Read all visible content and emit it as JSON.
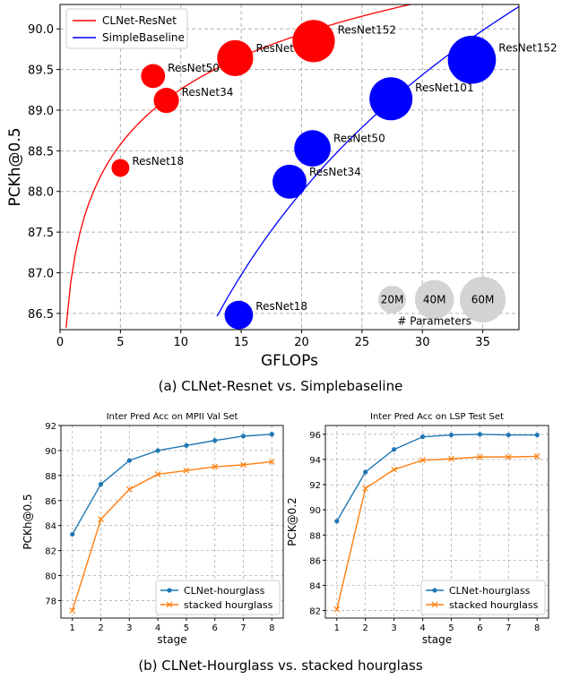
{
  "chart_data": [
    {
      "type": "scatter",
      "title": "",
      "caption": "(a) CLNet-Resnet vs. Simplebaseline",
      "xlabel": "GFLOPs",
      "ylabel": "PCKh@0.5",
      "xlim": [
        0,
        38
      ],
      "ylim": [
        86.3,
        90.3
      ],
      "xticks": [
        0,
        5,
        10,
        15,
        20,
        25,
        30,
        35
      ],
      "yticks": [
        86.5,
        87.0,
        87.5,
        88.0,
        88.5,
        89.0,
        89.5,
        90.0
      ],
      "ytick_labels": [
        "86.5",
        "87.0",
        "87.5",
        "88.0",
        "88.5",
        "89.0",
        "89.5",
        "90.0"
      ],
      "grid": true,
      "legend_position": "top-left",
      "series": [
        {
          "name": "CLNet-ResNet",
          "color": "#ff0000",
          "points": [
            {
              "label": "ResNet18",
              "x": 5.0,
              "y": 88.29,
              "params_m": 11
            },
            {
              "label": "ResNet34",
              "x": 8.8,
              "y": 89.12,
              "params_m": 22
            },
            {
              "label": "ResNet50",
              "x": 7.7,
              "y": 89.42,
              "params_m": 20
            },
            {
              "label": "ResNet101",
              "x": 14.5,
              "y": 89.64,
              "params_m": 45
            },
            {
              "label": "ResNet152",
              "x": 21.0,
              "y": 89.85,
              "params_m": 62
            }
          ],
          "trend": {
            "x_start": 0.5,
            "x_end": 31
          }
        },
        {
          "name": "SimpleBaseline",
          "color": "#0000ff",
          "points": [
            {
              "label": "ResNet18",
              "x": 14.8,
              "y": 86.48,
              "params_m": 28
            },
            {
              "label": "ResNet34",
              "x": 19.0,
              "y": 88.12,
              "params_m": 40
            },
            {
              "label": "ResNet50",
              "x": 20.9,
              "y": 88.53,
              "params_m": 46
            },
            {
              "label": "ResNet101",
              "x": 27.4,
              "y": 89.14,
              "params_m": 64
            },
            {
              "label": "ResNet152",
              "x": 34.1,
              "y": 89.62,
              "params_m": 80
            }
          ],
          "trend": {
            "x_start": 13,
            "x_end": 38
          }
        }
      ],
      "size_legend": {
        "title": "# Parameters",
        "entries": [
          {
            "label": "20M",
            "x": 27.5,
            "params_m": 20
          },
          {
            "label": "40M",
            "x": 31.0,
            "params_m": 40
          },
          {
            "label": "60M",
            "x": 35.0,
            "params_m": 60
          }
        ],
        "y": 86.67
      }
    },
    {
      "type": "line",
      "title": "Inter Pred Acc on MPII Val Set",
      "xlabel": "stage",
      "ylabel": "PCKh@0.5",
      "xlim": [
        0.6,
        8.4
      ],
      "ylim": [
        76.6,
        92.0
      ],
      "x": [
        1,
        2,
        3,
        4,
        5,
        6,
        7,
        8
      ],
      "yticks": [
        78,
        80,
        82,
        84,
        86,
        88,
        90,
        92
      ],
      "grid": true,
      "legend_position": "bottom-right",
      "series": [
        {
          "name": "CLNet-hourglass",
          "color": "#1f77b4",
          "marker": "dot",
          "values": [
            83.3,
            87.3,
            89.2,
            90.0,
            90.4,
            90.8,
            91.15,
            91.3
          ]
        },
        {
          "name": "stacked hourglass",
          "color": "#ff7f0e",
          "marker": "x",
          "values": [
            77.2,
            84.5,
            86.9,
            88.1,
            88.4,
            88.7,
            88.85,
            89.1
          ]
        }
      ]
    },
    {
      "type": "line",
      "title": "Inter Pred Acc on LSP Test Set",
      "xlabel": "stage",
      "ylabel": "PCK@0.2",
      "xlim": [
        0.6,
        8.4
      ],
      "ylim": [
        81.4,
        96.7
      ],
      "x": [
        1,
        2,
        3,
        4,
        5,
        6,
        7,
        8
      ],
      "yticks": [
        82,
        84,
        86,
        88,
        90,
        92,
        94,
        96
      ],
      "grid": true,
      "legend_position": "bottom-right",
      "series": [
        {
          "name": "CLNet-hourglass",
          "color": "#1f77b4",
          "marker": "dot",
          "values": [
            89.1,
            93.0,
            94.8,
            95.8,
            95.95,
            96.0,
            95.95,
            95.95
          ]
        },
        {
          "name": "stacked hourglass",
          "color": "#ff7f0e",
          "marker": "x",
          "values": [
            82.1,
            91.7,
            93.2,
            93.95,
            94.05,
            94.2,
            94.2,
            94.25
          ]
        }
      ]
    }
  ],
  "captions": {
    "top": "(a) CLNet-Resnet vs. Simplebaseline",
    "bottom": "(b) CLNet-Hourglass vs. stacked hourglass"
  }
}
